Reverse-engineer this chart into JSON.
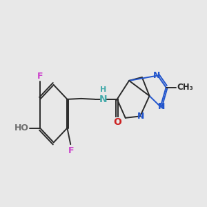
{
  "background_color": "#e8e8e8",
  "bond_color": "#2a2a2a",
  "figsize": [
    3.0,
    3.0
  ],
  "dpi": 100,
  "F_color": "#cc44cc",
  "HO_color": "#707070",
  "NH_color": "#44aaaa",
  "O_color": "#cc2222",
  "N_color": "#2255cc",
  "CH3_color": "#2a2a2a",
  "xlim": [
    0,
    11
  ],
  "ylim": [
    2.0,
    8.0
  ]
}
